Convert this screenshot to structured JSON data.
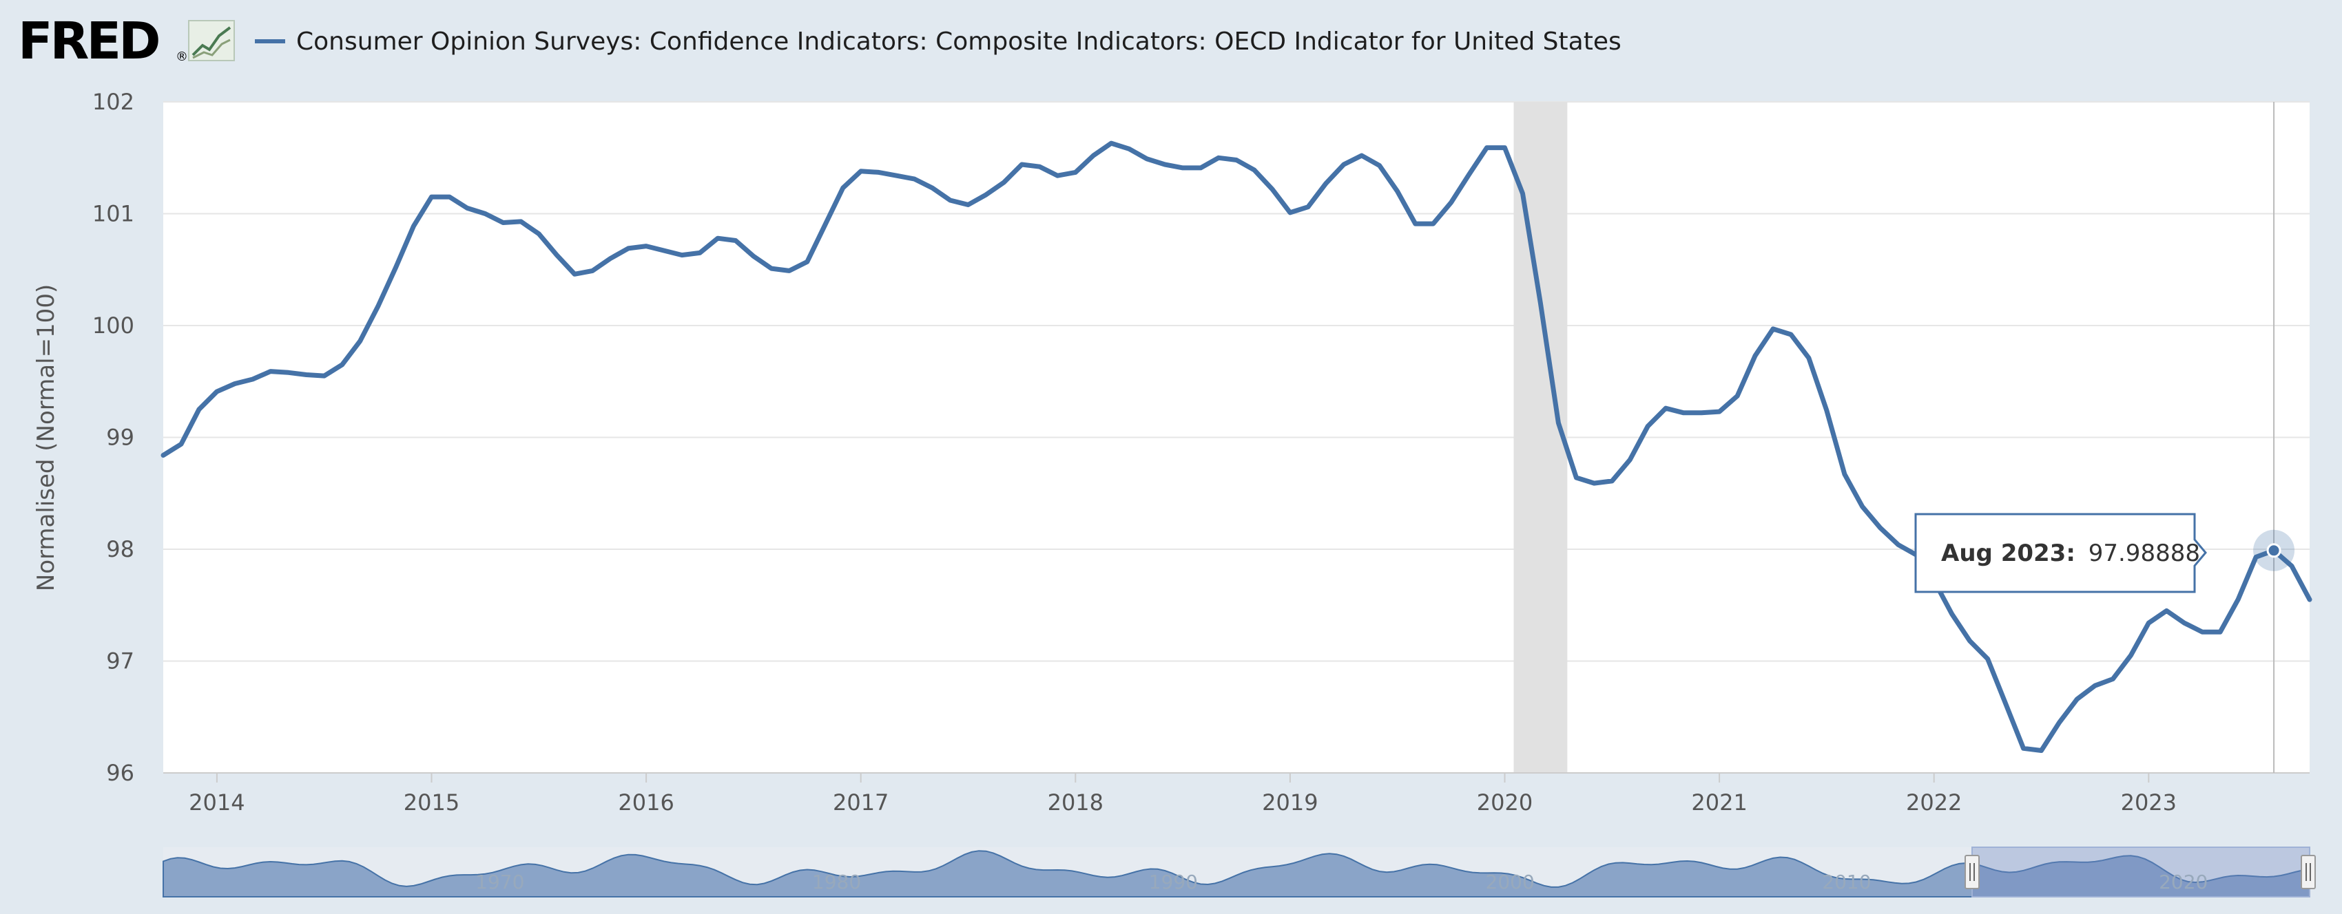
{
  "header": {
    "logo_text": "FRED",
    "logo_reg": "®",
    "title": "Consumer Opinion Surveys: Confidence Indicators: Composite Indicators: OECD Indicator for United States",
    "colors": {
      "series": "#4572a7",
      "logo": "#000000",
      "background": "#e1e9f0"
    }
  },
  "tooltip": {
    "date": "Aug 2023:",
    "value": "97.98888"
  },
  "navigator": {
    "labels": [
      "1970",
      "1980",
      "1990",
      "2000",
      "2010",
      "2020"
    ],
    "range_start": "2013-10",
    "range_end": "2023-10"
  },
  "chart_data": {
    "type": "line",
    "title": "Consumer Opinion Surveys: Confidence Indicators: Composite Indicators: OECD Indicator for United States",
    "xlabel": "",
    "ylabel": "Normalised (Normal=100)",
    "ylim": [
      96,
      102
    ],
    "yticks": [
      96,
      97,
      98,
      99,
      100,
      101,
      102
    ],
    "xticks": [
      "2014",
      "2015",
      "2016",
      "2017",
      "2018",
      "2019",
      "2020",
      "2021",
      "2022",
      "2023"
    ],
    "grid": true,
    "legend": "top-left",
    "recession": [
      "2020-02",
      "2020-04"
    ],
    "series": [
      {
        "name": "Consumer Opinion Surveys: Confidence Indicators: Composite Indicators: OECD Indicator for United States",
        "x": [
          "2013-10",
          "2013-11",
          "2013-12",
          "2014-01",
          "2014-02",
          "2014-03",
          "2014-04",
          "2014-05",
          "2014-06",
          "2014-07",
          "2014-08",
          "2014-09",
          "2014-10",
          "2014-11",
          "2014-12",
          "2015-01",
          "2015-02",
          "2015-03",
          "2015-04",
          "2015-05",
          "2015-06",
          "2015-07",
          "2015-08",
          "2015-09",
          "2015-10",
          "2015-11",
          "2015-12",
          "2016-01",
          "2016-02",
          "2016-03",
          "2016-04",
          "2016-05",
          "2016-06",
          "2016-07",
          "2016-08",
          "2016-09",
          "2016-10",
          "2016-11",
          "2016-12",
          "2017-01",
          "2017-02",
          "2017-03",
          "2017-04",
          "2017-05",
          "2017-06",
          "2017-07",
          "2017-08",
          "2017-09",
          "2017-10",
          "2017-11",
          "2017-12",
          "2018-01",
          "2018-02",
          "2018-03",
          "2018-04",
          "2018-05",
          "2018-06",
          "2018-07",
          "2018-08",
          "2018-09",
          "2018-10",
          "2018-11",
          "2018-12",
          "2019-01",
          "2019-02",
          "2019-03",
          "2019-04",
          "2019-05",
          "2019-06",
          "2019-07",
          "2019-08",
          "2019-09",
          "2019-10",
          "2019-11",
          "2019-12",
          "2020-01",
          "2020-02",
          "2020-03",
          "2020-04",
          "2020-05",
          "2020-06",
          "2020-07",
          "2020-08",
          "2020-09",
          "2020-10",
          "2020-11",
          "2020-12",
          "2021-01",
          "2021-02",
          "2021-03",
          "2021-04",
          "2021-05",
          "2021-06",
          "2021-07",
          "2021-08",
          "2021-09",
          "2021-10",
          "2021-11",
          "2021-12",
          "2022-01",
          "2022-02",
          "2022-03",
          "2022-04",
          "2022-05",
          "2022-06",
          "2022-07",
          "2022-08",
          "2022-09",
          "2022-10",
          "2022-11",
          "2022-12",
          "2023-01",
          "2023-02",
          "2023-03",
          "2023-04",
          "2023-05",
          "2023-06",
          "2023-07",
          "2023-08",
          "2023-09",
          "2023-10"
        ],
        "values": [
          98.84,
          98.94,
          99.25,
          99.41,
          99.48,
          99.52,
          99.59,
          99.58,
          99.56,
          99.55,
          99.65,
          99.86,
          100.17,
          100.52,
          100.89,
          101.15,
          101.15,
          101.05,
          101.0,
          100.92,
          100.93,
          100.82,
          100.63,
          100.46,
          100.49,
          100.6,
          100.69,
          100.71,
          100.67,
          100.63,
          100.65,
          100.78,
          100.76,
          100.62,
          100.51,
          100.49,
          100.57,
          100.9,
          101.23,
          101.38,
          101.37,
          101.34,
          101.31,
          101.23,
          101.12,
          101.08,
          101.17,
          101.28,
          101.44,
          101.42,
          101.34,
          101.37,
          101.52,
          101.63,
          101.58,
          101.49,
          101.44,
          101.41,
          101.41,
          101.5,
          101.48,
          101.39,
          101.22,
          101.01,
          101.06,
          101.27,
          101.44,
          101.52,
          101.43,
          101.2,
          100.91,
          100.91,
          101.1,
          101.35,
          101.59,
          101.59,
          101.18,
          100.2,
          99.13,
          98.64,
          98.59,
          98.61,
          98.8,
          99.1,
          99.26,
          99.22,
          99.22,
          99.23,
          99.37,
          99.73,
          99.97,
          99.92,
          99.71,
          99.24,
          98.67,
          98.38,
          98.19,
          98.04,
          97.95,
          97.72,
          97.42,
          97.18,
          97.02,
          96.62,
          96.22,
          96.2,
          96.45,
          96.66,
          96.78,
          96.84,
          97.05,
          97.34,
          97.45,
          97.34,
          97.26,
          97.26,
          97.55,
          97.93,
          97.98888,
          97.85,
          97.55
        ]
      }
    ]
  }
}
